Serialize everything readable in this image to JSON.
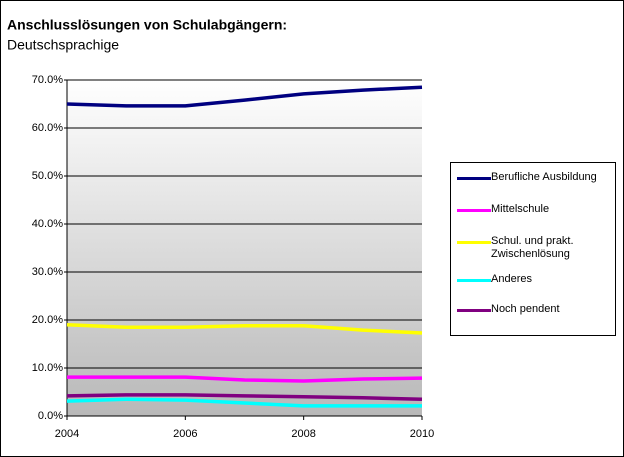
{
  "chart_data": {
    "type": "line",
    "title": "Anschlusslösungen von Schulabgängern:",
    "subtitle": "Deutschsprachige",
    "x": [
      2004,
      2005,
      2006,
      2007,
      2008,
      2009,
      2010
    ],
    "xlim": [
      2004,
      2010
    ],
    "xticks": [
      2004,
      2006,
      2008,
      2010
    ],
    "ylim": [
      0,
      70
    ],
    "yticks": [
      {
        "value": 0,
        "label": "0.0%"
      },
      {
        "value": 10,
        "label": "10.0%"
      },
      {
        "value": 20,
        "label": "20.0%"
      },
      {
        "value": 30,
        "label": "30.0%"
      },
      {
        "value": 40,
        "label": "40.0%"
      },
      {
        "value": 50,
        "label": "50.0%"
      },
      {
        "value": 60,
        "label": "60.0%"
      },
      {
        "value": 70,
        "label": "70.0%"
      }
    ],
    "grid": true,
    "legend": "right",
    "series": [
      {
        "name": "Berufliche Ausbildung",
        "color": "#000080",
        "values": [
          65.0,
          64.6,
          64.6,
          65.8,
          67.1,
          67.9,
          68.5
        ]
      },
      {
        "name": "Mittelschule",
        "color": "#ff00ff",
        "values": [
          8.1,
          8.1,
          8.1,
          7.5,
          7.3,
          7.7,
          7.9
        ]
      },
      {
        "name": "Schul. und prakt. Zwischenlösung",
        "color": "#ffff00",
        "values": [
          19.0,
          18.5,
          18.5,
          18.8,
          18.8,
          17.9,
          17.3
        ]
      },
      {
        "name": "Anderes",
        "color": "#00ffff",
        "values": [
          3.1,
          3.5,
          3.3,
          2.7,
          2.1,
          2.1,
          2.1
        ]
      },
      {
        "name": "Noch pendent",
        "color": "#800080",
        "values": [
          4.2,
          4.4,
          4.4,
          4.2,
          4.0,
          3.8,
          3.5
        ]
      }
    ]
  }
}
